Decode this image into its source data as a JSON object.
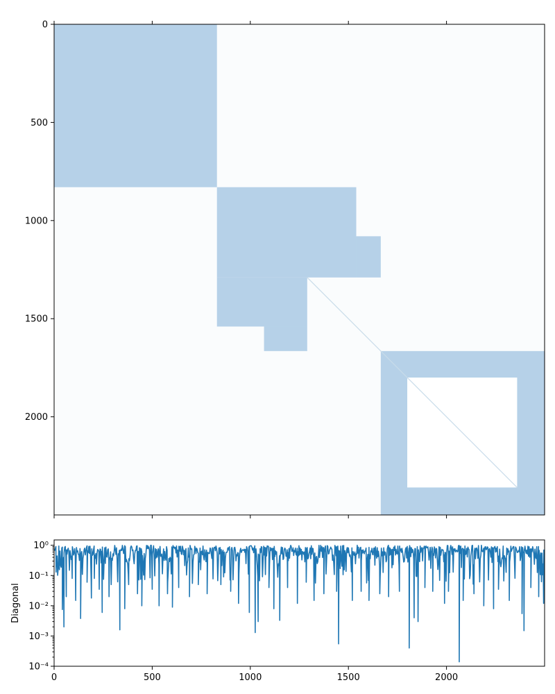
{
  "chart_data": [
    {
      "type": "heatmap",
      "subtype": "sparsity-pattern",
      "matrix_size": 2500,
      "xlim": [
        0,
        2500
      ],
      "ylim": [
        2500,
        0
      ],
      "x_ticks_shown": false,
      "y_ticks": [
        0,
        500,
        1000,
        1500,
        2000
      ],
      "y_tick_labels": [
        "0",
        "500",
        "1000",
        "1500",
        "2000"
      ],
      "marker_color": "#1f77b4",
      "grid": false,
      "dense_blocks": [
        {
          "rows": [
            0,
            830
          ],
          "cols": [
            0,
            830
          ]
        },
        {
          "rows": [
            830,
            1290
          ],
          "cols": [
            830,
            1540
          ]
        },
        {
          "rows": [
            1080,
            1290
          ],
          "cols": [
            1540,
            1665
          ]
        },
        {
          "rows": [
            1290,
            1540
          ],
          "cols": [
            830,
            1290
          ]
        },
        {
          "rows": [
            1540,
            1665
          ],
          "cols": [
            1070,
            1290
          ]
        },
        {
          "rows": [
            1665,
            2500
          ],
          "cols": [
            1665,
            2500
          ]
        }
      ],
      "empty_block": {
        "rows": [
          1800,
          2360
        ],
        "cols": [
          1800,
          2360
        ]
      },
      "diagonal_visible_range": [
        1290,
        2360
      ]
    },
    {
      "type": "line",
      "ylabel": "Diagonal",
      "yscale": "log",
      "xlim": [
        0,
        2500
      ],
      "ylim": [
        0.0001,
        1.5
      ],
      "x_ticks": [
        0,
        500,
        1000,
        1500,
        2000
      ],
      "x_tick_labels": [
        "0",
        "500",
        "1000",
        "1500",
        "2000"
      ],
      "y_tick_labels": [
        "10⁻⁴",
        "10⁻³",
        "10⁻²",
        "10⁻¹",
        "10⁰"
      ],
      "color": "#1f77b4",
      "typical_range": [
        0.2,
        1.0
      ],
      "dips": [
        {
          "x": 10,
          "y": 0.13
        },
        {
          "x": 25,
          "y": 0.28
        },
        {
          "x": 42,
          "y": 0.0075
        },
        {
          "x": 50,
          "y": 0.002
        },
        {
          "x": 62,
          "y": 0.02
        },
        {
          "x": 92,
          "y": 0.08
        },
        {
          "x": 110,
          "y": 0.015
        },
        {
          "x": 135,
          "y": 0.0038
        },
        {
          "x": 168,
          "y": 0.06
        },
        {
          "x": 190,
          "y": 0.018
        },
        {
          "x": 205,
          "y": 0.08
        },
        {
          "x": 230,
          "y": 0.035
        },
        {
          "x": 245,
          "y": 0.006
        },
        {
          "x": 280,
          "y": 0.02
        },
        {
          "x": 335,
          "y": 0.0016
        },
        {
          "x": 360,
          "y": 0.008
        },
        {
          "x": 380,
          "y": 0.05
        },
        {
          "x": 425,
          "y": 0.025
        },
        {
          "x": 447,
          "y": 0.01
        },
        {
          "x": 500,
          "y": 0.035
        },
        {
          "x": 535,
          "y": 0.01
        },
        {
          "x": 578,
          "y": 0.025
        },
        {
          "x": 603,
          "y": 0.009
        },
        {
          "x": 635,
          "y": 0.04
        },
        {
          "x": 690,
          "y": 0.02
        },
        {
          "x": 735,
          "y": 0.05
        },
        {
          "x": 780,
          "y": 0.025
        },
        {
          "x": 850,
          "y": 0.05
        },
        {
          "x": 900,
          "y": 0.03
        },
        {
          "x": 940,
          "y": 0.012
        },
        {
          "x": 995,
          "y": 0.006
        },
        {
          "x": 1025,
          "y": 0.0013
        },
        {
          "x": 1040,
          "y": 0.003
        },
        {
          "x": 1095,
          "y": 0.04
        },
        {
          "x": 1120,
          "y": 0.008
        },
        {
          "x": 1150,
          "y": 0.0033
        },
        {
          "x": 1190,
          "y": 0.04
        },
        {
          "x": 1240,
          "y": 0.012
        },
        {
          "x": 1285,
          "y": 0.06
        },
        {
          "x": 1325,
          "y": 0.015
        },
        {
          "x": 1375,
          "y": 0.025
        },
        {
          "x": 1440,
          "y": 0.03
        },
        {
          "x": 1450,
          "y": 0.00055
        },
        {
          "x": 1520,
          "y": 0.015
        },
        {
          "x": 1565,
          "y": 0.03
        },
        {
          "x": 1605,
          "y": 0.015
        },
        {
          "x": 1660,
          "y": 0.025
        },
        {
          "x": 1705,
          "y": 0.02
        },
        {
          "x": 1760,
          "y": 0.03
        },
        {
          "x": 1810,
          "y": 0.0004
        },
        {
          "x": 1835,
          "y": 0.004
        },
        {
          "x": 1855,
          "y": 0.003
        },
        {
          "x": 1890,
          "y": 0.04
        },
        {
          "x": 1930,
          "y": 0.03
        },
        {
          "x": 1990,
          "y": 0.012
        },
        {
          "x": 2010,
          "y": 0.03
        },
        {
          "x": 2065,
          "y": 0.00014
        },
        {
          "x": 2085,
          "y": 0.015
        },
        {
          "x": 2140,
          "y": 0.025
        },
        {
          "x": 2190,
          "y": 0.01
        },
        {
          "x": 2240,
          "y": 0.008
        },
        {
          "x": 2265,
          "y": 0.035
        },
        {
          "x": 2320,
          "y": 0.015
        },
        {
          "x": 2385,
          "y": 0.0055
        },
        {
          "x": 2395,
          "y": 0.0015
        },
        {
          "x": 2430,
          "y": 0.04
        },
        {
          "x": 2470,
          "y": 0.02
        },
        {
          "x": 2495,
          "y": 0.012
        }
      ]
    }
  ]
}
